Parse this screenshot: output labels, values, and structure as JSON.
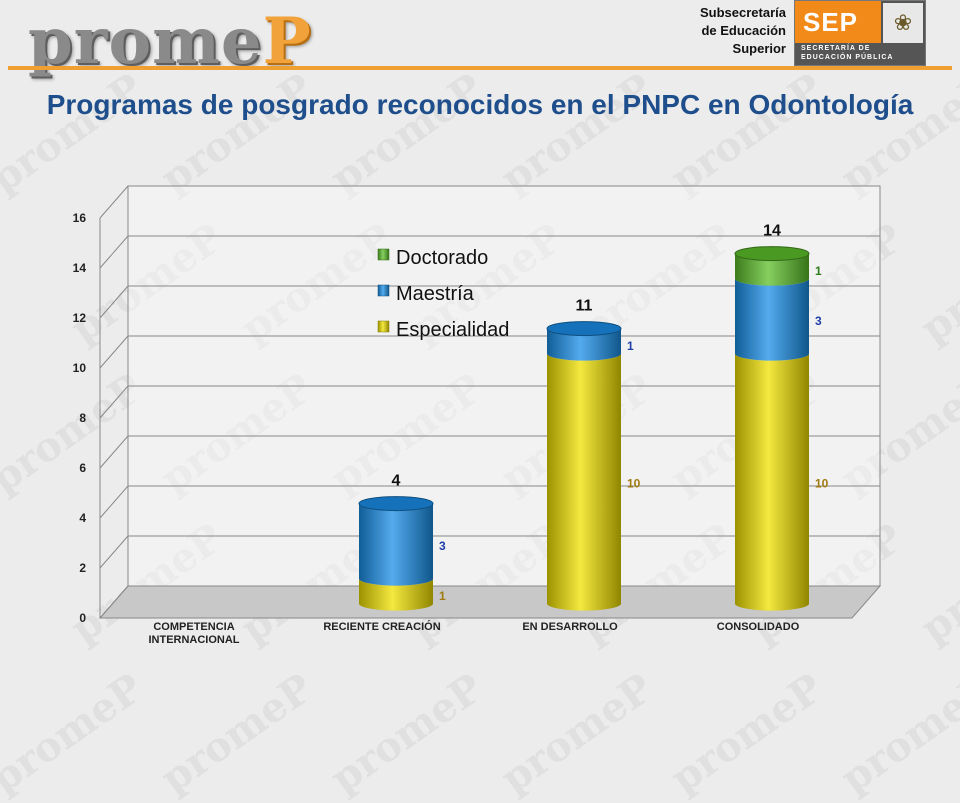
{
  "header": {
    "logo_pre": "prome",
    "logo_accent": "P",
    "subsecretaria": [
      "Subsecretaría",
      "de Educación",
      "Superior"
    ],
    "sep_label": "SEP",
    "sep_line1": "SECRETARÍA DE",
    "sep_line2": "EDUCACIÓN PÚBLICA",
    "accent_color": "#f0a030",
    "sep_color": "#f28a1a"
  },
  "watermark": "promeP",
  "chart_data": {
    "type": "bar",
    "stacked": true,
    "title": "Programas de posgrado reconocidos en el PNPC en Odontología",
    "categories": [
      "COMPETENCIA INTERNACIONAL",
      "RECIENTE CREACIÓN",
      "EN DESARROLLO",
      "CONSOLIDADO"
    ],
    "series": [
      {
        "name": "Especialidad",
        "values": [
          0,
          1,
          10,
          10
        ],
        "color": "#f0e000",
        "label_color": "#a07a10"
      },
      {
        "name": "Maestría",
        "values": [
          0,
          3,
          1,
          3
        ],
        "color": "#1a8fe8",
        "label_color": "#1f3fa8"
      },
      {
        "name": "Doctorado",
        "values": [
          0,
          0,
          0,
          1
        ],
        "color": "#5cbf2a",
        "label_color": "#2e7d1a"
      }
    ],
    "totals": [
      0,
      4,
      11,
      14
    ],
    "total_labels": [
      "",
      "4",
      "11",
      "14"
    ],
    "ylim": [
      0,
      16
    ],
    "yticks": [
      0,
      2,
      4,
      6,
      8,
      10,
      12,
      14,
      16
    ],
    "legend_order": [
      "Doctorado",
      "Maestría",
      "Especialidad"
    ],
    "legend_position": "top-center",
    "grid": true
  }
}
